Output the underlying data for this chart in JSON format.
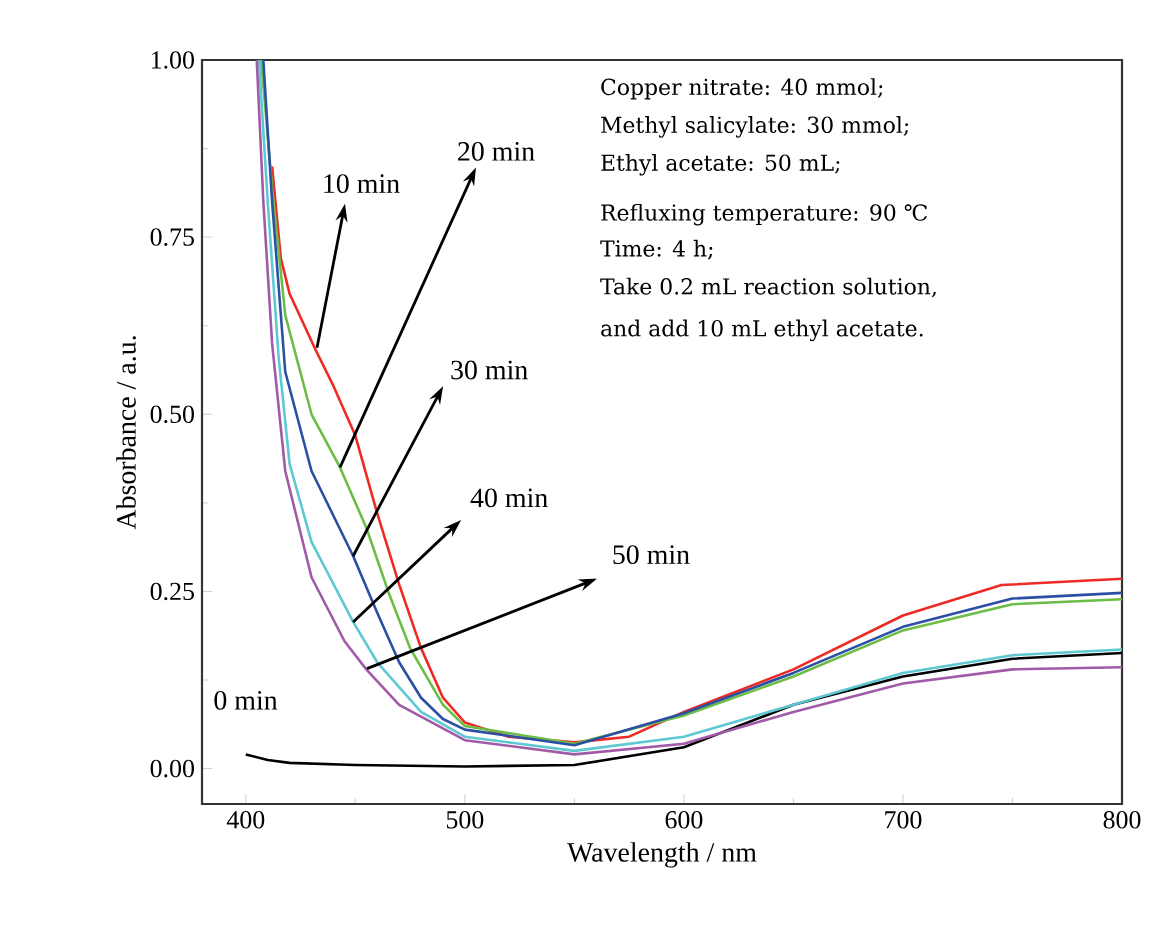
{
  "chart_data": {
    "type": "line",
    "xlabel": "Wavelength / nm",
    "ylabel": "Absorbance / a.u.",
    "xlim": [
      380,
      800
    ],
    "ylim": [
      -0.05,
      1.0
    ],
    "xticks": [
      400,
      500,
      600,
      700,
      800
    ],
    "yticks": [
      {
        "value": 0,
        "label": "0.00"
      },
      {
        "value": 0.25,
        "label": "0.25"
      },
      {
        "value": 0.5,
        "label": "0.50"
      },
      {
        "value": 0.75,
        "label": "0.75"
      },
      {
        "value": 1.0,
        "label": "1.00"
      }
    ],
    "series": [
      {
        "color": "#000000",
        "x": [
          400,
          410,
          420,
          450,
          500,
          550,
          600,
          650,
          700,
          750,
          800
        ],
        "values": [
          0.02,
          0.012,
          0.008,
          0.005,
          0.003,
          0.005,
          0.03,
          0.09,
          0.13,
          0.155,
          0.163
        ]
      },
      {
        "color": "#ee2a24",
        "x": [
          412,
          416,
          420,
          432,
          440,
          450,
          460,
          470,
          480,
          490,
          500,
          520,
          550,
          575,
          600,
          650,
          700,
          745,
          800
        ],
        "values": [
          0.85,
          0.72,
          0.67,
          0.59,
          0.54,
          0.47,
          0.36,
          0.26,
          0.17,
          0.1,
          0.065,
          0.045,
          0.037,
          0.045,
          0.08,
          0.14,
          0.216,
          0.259,
          0.268
        ]
      },
      {
        "color": "#6cbd45",
        "x": [
          407,
          412,
          418,
          430,
          443,
          455,
          465,
          475,
          490,
          500,
          550,
          600,
          650,
          700,
          750,
          800
        ],
        "values": [
          1.0,
          0.82,
          0.64,
          0.5,
          0.425,
          0.34,
          0.25,
          0.17,
          0.09,
          0.06,
          0.035,
          0.075,
          0.13,
          0.195,
          0.232,
          0.239
        ]
      },
      {
        "color": "#2b4fa3",
        "x": [
          408,
          412,
          418,
          430,
          449,
          460,
          470,
          480,
          490,
          500,
          550,
          600,
          650,
          700,
          750,
          800
        ],
        "values": [
          1.0,
          0.8,
          0.56,
          0.42,
          0.3,
          0.22,
          0.15,
          0.1,
          0.07,
          0.055,
          0.033,
          0.078,
          0.135,
          0.2,
          0.24,
          0.248
        ]
      },
      {
        "color": "#5ec8d3",
        "x": [
          406,
          410,
          415,
          420,
          430,
          449,
          460,
          480,
          500,
          550,
          600,
          650,
          700,
          750,
          800
        ],
        "values": [
          1.0,
          0.8,
          0.58,
          0.43,
          0.32,
          0.207,
          0.15,
          0.08,
          0.045,
          0.025,
          0.045,
          0.09,
          0.135,
          0.16,
          0.168
        ]
      },
      {
        "color": "#a05aa8",
        "x": [
          405,
          408,
          412,
          418,
          430,
          445,
          455,
          470,
          500,
          550,
          600,
          650,
          700,
          750,
          800
        ],
        "values": [
          1.0,
          0.8,
          0.6,
          0.42,
          0.27,
          0.18,
          0.14,
          0.09,
          0.04,
          0.02,
          0.035,
          0.08,
          0.12,
          0.14,
          0.143
        ]
      }
    ],
    "annotations": [
      {
        "text": "0 min",
        "x": 409,
        "y": 0.02
      },
      {
        "text": "10 min",
        "x": 432.5,
        "y": 0.594
      },
      {
        "text": "20 min",
        "x": 443,
        "y": 0.425
      },
      {
        "text": "30 min",
        "x": 449,
        "y": 0.3
      },
      {
        "text": "40 min",
        "x": 449,
        "y": 0.207
      },
      {
        "text": "50 min",
        "x": 455.3,
        "y": 0.141
      },
      "Copper nitrate: 40 mmol;",
      "Methyl salicylate: 30 mmol;",
      "Ethyl acetate: 50 mL;",
      "Refluxing temperature: 90 ℃",
      "Time: 4 h;",
      "Take 0.2 mL reaction solution,",
      "and add 10 mL ethyl acetate."
    ]
  }
}
